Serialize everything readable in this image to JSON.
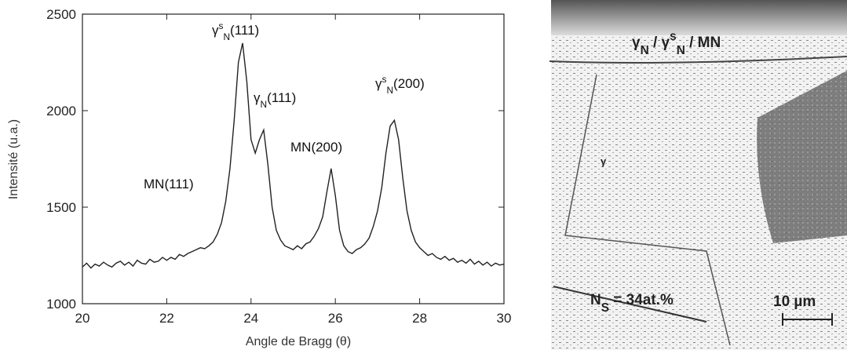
{
  "chart_data": {
    "type": "line",
    "x_label": "Angle de Bragg (θ)",
    "y_label": "Intensité (u.a.)",
    "xlim": [
      20,
      30
    ],
    "ylim": [
      1000,
      2500
    ],
    "xticks": [
      20,
      22,
      24,
      26,
      28,
      30
    ],
    "yticks": [
      1000,
      1500,
      2000,
      2500
    ],
    "x": [
      20.0,
      20.1,
      20.2,
      20.3,
      20.4,
      20.5,
      20.6,
      20.7,
      20.8,
      20.9,
      21.0,
      21.1,
      21.2,
      21.3,
      21.4,
      21.5,
      21.6,
      21.7,
      21.8,
      21.9,
      22.0,
      22.1,
      22.2,
      22.3,
      22.4,
      22.5,
      22.6,
      22.7,
      22.8,
      22.9,
      23.0,
      23.1,
      23.2,
      23.3,
      23.4,
      23.5,
      23.6,
      23.7,
      23.8,
      23.9,
      24.0,
      24.1,
      24.2,
      24.3,
      24.4,
      24.5,
      24.6,
      24.7,
      24.8,
      24.9,
      25.0,
      25.1,
      25.2,
      25.3,
      25.4,
      25.5,
      25.6,
      25.7,
      25.8,
      25.9,
      26.0,
      26.1,
      26.2,
      26.3,
      26.4,
      26.5,
      26.6,
      26.7,
      26.8,
      26.9,
      27.0,
      27.1,
      27.2,
      27.3,
      27.4,
      27.5,
      27.6,
      27.7,
      27.8,
      27.9,
      28.0,
      28.1,
      28.2,
      28.3,
      28.4,
      28.5,
      28.6,
      28.7,
      28.8,
      28.9,
      29.0,
      29.1,
      29.2,
      29.3,
      29.4,
      29.5,
      29.6,
      29.7,
      29.8,
      29.9,
      30.0
    ],
    "series": [
      {
        "color": "#222222",
        "values": [
          1190,
          1210,
          1185,
          1205,
          1195,
          1215,
          1200,
          1190,
          1210,
          1220,
          1200,
          1215,
          1195,
          1225,
          1210,
          1205,
          1230,
          1215,
          1220,
          1240,
          1225,
          1240,
          1230,
          1255,
          1245,
          1260,
          1270,
          1280,
          1290,
          1285,
          1300,
          1320,
          1360,
          1420,
          1530,
          1700,
          1950,
          2250,
          2350,
          2150,
          1850,
          1780,
          1850,
          1900,
          1720,
          1500,
          1380,
          1330,
          1300,
          1290,
          1280,
          1300,
          1285,
          1310,
          1320,
          1350,
          1390,
          1450,
          1580,
          1700,
          1560,
          1380,
          1300,
          1270,
          1260,
          1280,
          1290,
          1310,
          1340,
          1400,
          1480,
          1600,
          1780,
          1920,
          1950,
          1850,
          1650,
          1480,
          1380,
          1320,
          1290,
          1270,
          1250,
          1260,
          1240,
          1230,
          1245,
          1225,
          1235,
          1215,
          1225,
          1210,
          1230,
          1205,
          1220,
          1200,
          1215,
          1195,
          1210,
          1200,
          1205
        ]
      }
    ],
    "annotations": [
      [
        {
          "t": "γ"
        },
        {
          "t": "s",
          "sup": true
        },
        {
          "t": "N",
          "sub": true
        },
        {
          "t": "(111)"
        }
      ],
      [
        {
          "t": "γ"
        },
        {
          "t": "N",
          "sub": true
        },
        {
          "t": "(111)"
        }
      ],
      [
        {
          "t": "MN(200)"
        }
      ],
      [
        {
          "t": "γ"
        },
        {
          "t": "s",
          "sup": true
        },
        {
          "t": "N",
          "sub": true
        },
        {
          "t": "(200)"
        }
      ],
      [
        {
          "t": "MN(111)"
        }
      ]
    ]
  },
  "micrograph": {
    "phases": [
      {
        "t": "γ"
      },
      {
        "t": "N",
        "sub": true
      },
      {
        "t": " / "
      },
      {
        "t": "γ"
      },
      {
        "t": "s",
        "sup": true
      },
      {
        "t": "N",
        "sub": true
      },
      {
        "t": " / MN"
      }
    ],
    "grain": "γ",
    "nitrogen": [
      {
        "t": "N"
      },
      {
        "t": "S",
        "sub": true
      },
      {
        "t": " = 34at.%"
      }
    ],
    "scale": "10 µm"
  }
}
